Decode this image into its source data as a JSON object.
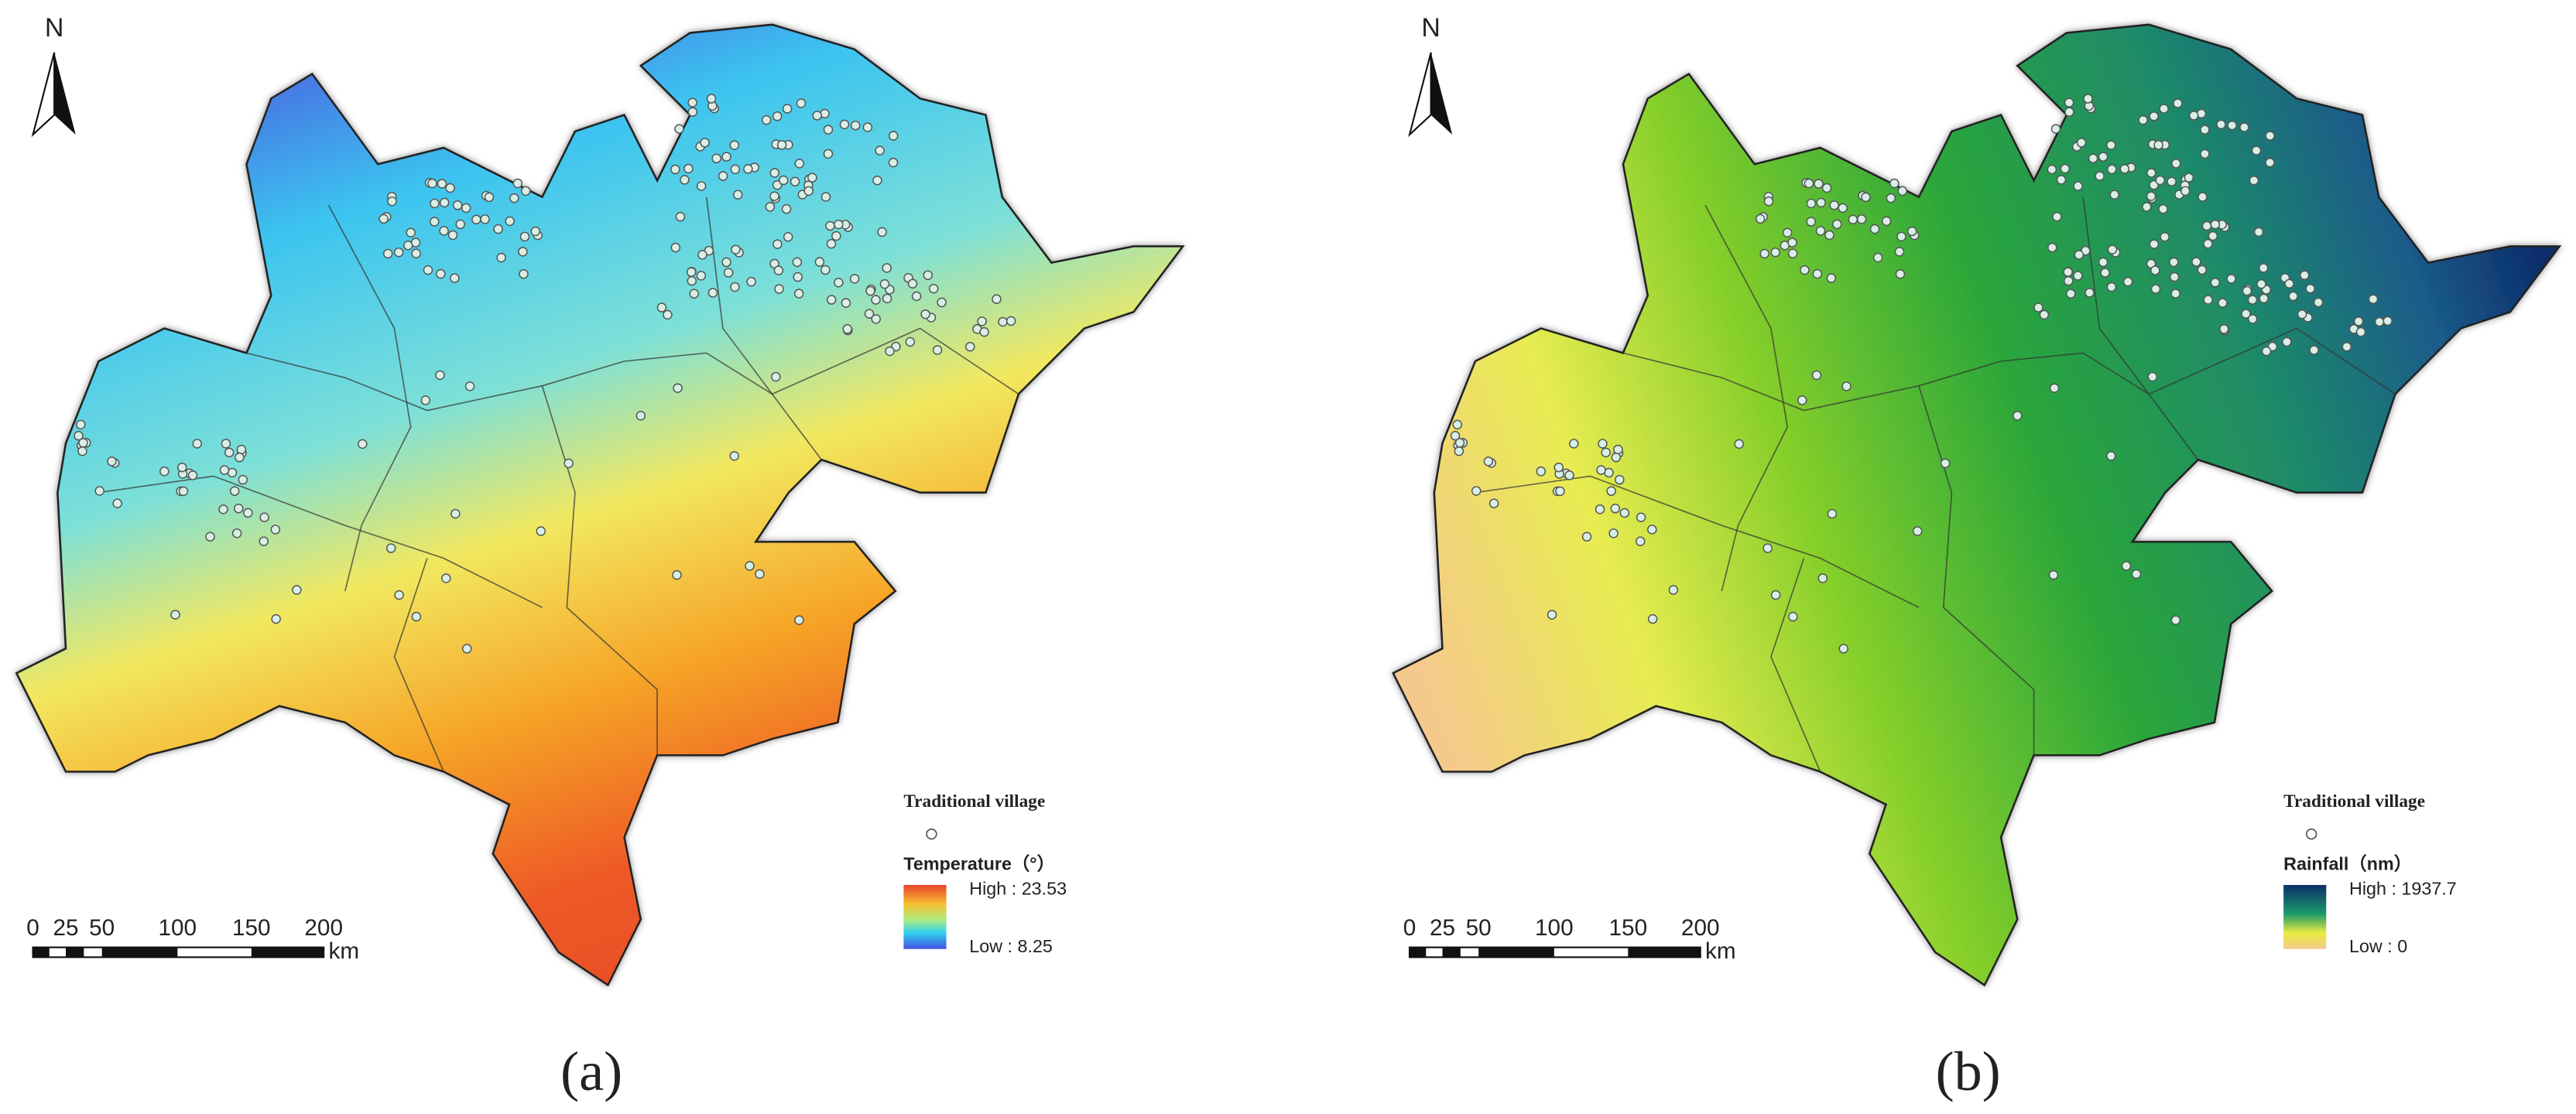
{
  "panels": [
    {
      "caption": "(a)",
      "north": "N",
      "scale_bar": {
        "labels": [
          "0",
          "25",
          "50",
          "100",
          "150",
          "200"
        ],
        "unit": "km"
      },
      "legend": {
        "points_title": "Traditional village",
        "raster_title": "Temperature（°）",
        "high": "High : 23.53",
        "low": "Low : 8.25"
      }
    },
    {
      "caption": "(b)",
      "north": "N",
      "scale_bar": {
        "labels": [
          "0",
          "25",
          "50",
          "100",
          "150",
          "200"
        ],
        "unit": "km"
      },
      "legend": {
        "points_title": "Traditional village",
        "raster_title": "Rainfall（nm）",
        "high": "High : 1937.7",
        "low": "Low : 0"
      }
    }
  ]
}
